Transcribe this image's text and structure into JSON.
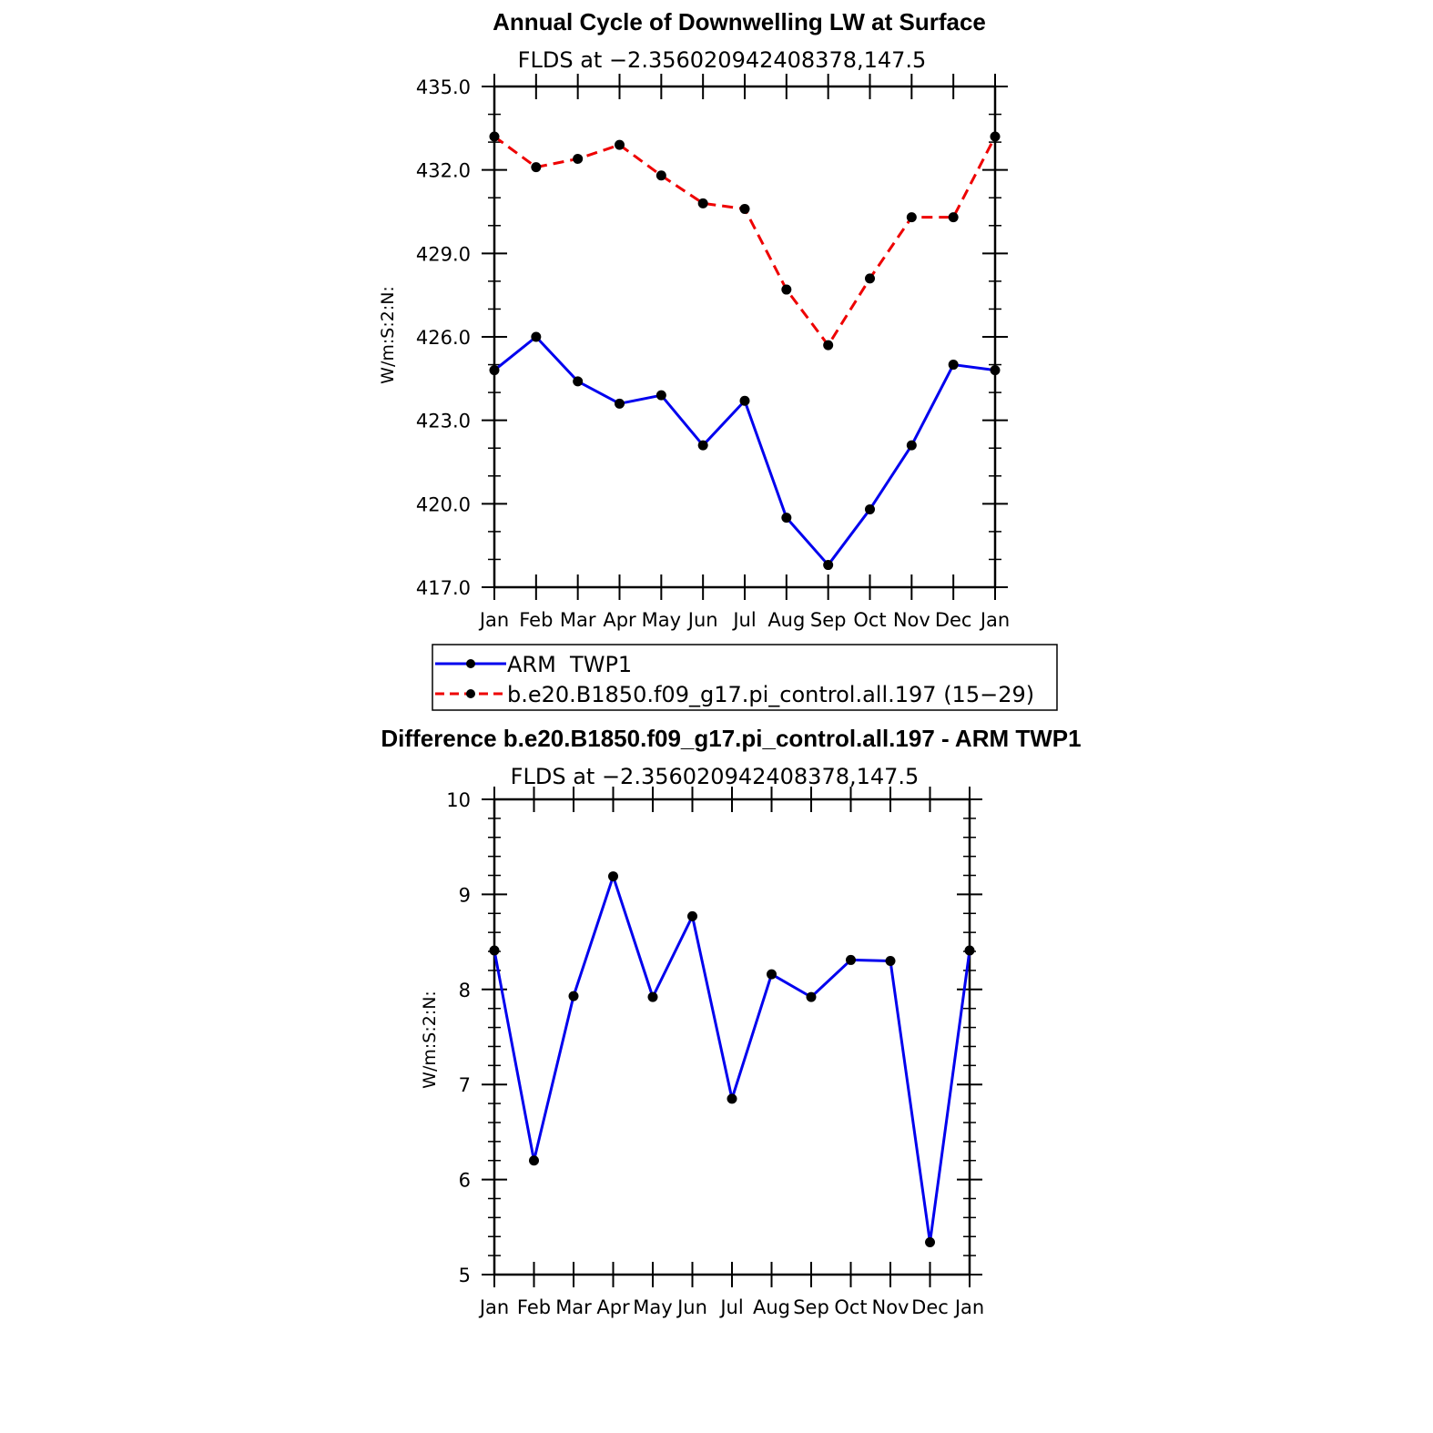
{
  "chart_data": [
    {
      "type": "line",
      "title": "Annual Cycle of Downwelling LW at Surface",
      "subtitle": "FLDS at −2.356020942408378,147.5",
      "ylabel": "W/m:S:2:N:",
      "xlabel": "",
      "categories": [
        "Jan",
        "Feb",
        "Mar",
        "Apr",
        "May",
        "Jun",
        "Jul",
        "Aug",
        "Sep",
        "Oct",
        "Nov",
        "Dec",
        "Jan"
      ],
      "ylim": [
        417.0,
        435.0
      ],
      "yticks": [
        "417.0",
        "420.0",
        "423.0",
        "426.0",
        "429.0",
        "432.0",
        "435.0"
      ],
      "series": [
        {
          "name": "ARM  TWP1",
          "color": "#0000ee",
          "dash": "solid",
          "values": [
            424.8,
            426.0,
            424.4,
            423.6,
            423.9,
            422.1,
            423.7,
            419.5,
            417.8,
            419.8,
            422.1,
            425.0,
            424.8
          ]
        },
        {
          "name": "b.e20.B1850.f09_g17.pi_control.all.197 (15−29)",
          "color": "#ee0000",
          "dash": "dashed",
          "values": [
            433.2,
            432.1,
            432.4,
            432.9,
            431.8,
            430.8,
            430.6,
            427.7,
            425.7,
            428.1,
            430.3,
            430.3,
            433.2
          ]
        }
      ],
      "legend_position": "bottom"
    },
    {
      "type": "line",
      "title": "Difference b.e20.B1850.f09_g17.pi_control.all.197 - ARM TWP1",
      "subtitle": "FLDS at −2.356020942408378,147.5",
      "ylabel": "W/m:S:2:N:",
      "xlabel": "",
      "categories": [
        "Jan",
        "Feb",
        "Mar",
        "Apr",
        "May",
        "Jun",
        "Jul",
        "Aug",
        "Sep",
        "Oct",
        "Nov",
        "Dec",
        "Jan"
      ],
      "ylim": [
        5,
        10
      ],
      "yticks": [
        "5",
        "6",
        "7",
        "8",
        "9",
        "10"
      ],
      "series": [
        {
          "color": "#0000ee",
          "dash": "solid",
          "values": [
            8.41,
            6.2,
            7.93,
            9.19,
            7.92,
            8.77,
            6.85,
            8.16,
            7.92,
            8.31,
            8.3,
            5.34,
            8.41
          ]
        }
      ]
    }
  ]
}
